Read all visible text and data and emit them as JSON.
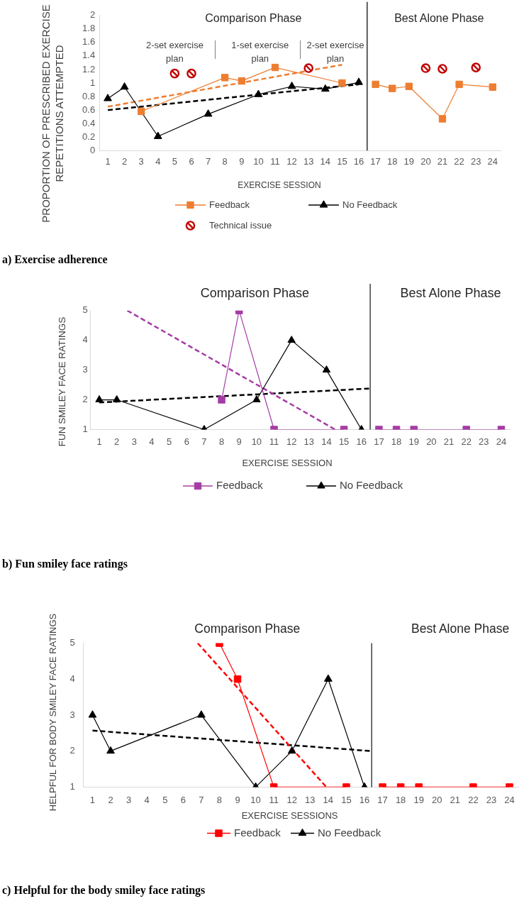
{
  "chart_data": [
    {
      "type": "line",
      "title": "a) Exercise adherence",
      "xlabel": "EXERCISE SESSION",
      "ylabel": "PROPORTION OF PRESCRIBED EXERCISE REPETITIONS ATTEMPTED",
      "xlim": [
        0.5,
        24.5
      ],
      "xticks": [
        1,
        2,
        3,
        4,
        5,
        6,
        7,
        8,
        9,
        10,
        11,
        12,
        13,
        14,
        15,
        16,
        17,
        18,
        19,
        20,
        21,
        22,
        23,
        24
      ],
      "ylim": [
        0,
        2
      ],
      "yticks": [
        0,
        0.2,
        0.4,
        0.6,
        0.8,
        1,
        1.2,
        1.4,
        1.6,
        1.8,
        2
      ],
      "legend": "bottom",
      "series": [
        {
          "name": "Feedback",
          "color": "#ed7d31",
          "marker": "square",
          "x": [
            3,
            8,
            9,
            11,
            15,
            16,
            17,
            18,
            19,
            21,
            22,
            24
          ],
          "values": [
            0.58,
            1.08,
            1.03,
            1.23,
            1.0,
            null,
            0.98,
            0.92,
            0.95,
            0.47,
            0.98,
            0.94
          ]
        },
        {
          "name": "No Feedback",
          "color": "#000000",
          "marker": "triangle",
          "x": [
            1,
            2,
            4,
            7,
            10,
            12,
            14,
            16
          ],
          "values": [
            0.77,
            0.94,
            0.21,
            0.54,
            0.83,
            0.95,
            0.91,
            1.01
          ]
        },
        {
          "name": "Technical issue",
          "type": "scatter",
          "color": "#c00000",
          "marker": "circle",
          "x": [
            5,
            6,
            13,
            20,
            21,
            23
          ],
          "values": [
            1.14,
            1.14,
            1.22,
            1.22,
            1.21,
            1.23
          ]
        },
        {
          "color": "#ed7d31",
          "line_style": "dashed",
          "marker": "none",
          "x": [
            1,
            15
          ],
          "values": [
            0.65,
            1.27
          ]
        },
        {
          "color": "#000000",
          "line_style": "dashed",
          "marker": "none",
          "x": [
            1,
            16
          ],
          "values": [
            0.6,
            0.98
          ]
        }
      ],
      "ref_lines": [
        {
          "axis": "x",
          "value": 16.5,
          "color": "#595959"
        }
      ],
      "annotations": [
        "Comparison Phase",
        "Best Alone Phase",
        "2-set exercise plan",
        "1-set exercise plan",
        "2-set exercise plan"
      ]
    },
    {
      "type": "line",
      "title": "b) Fun smiley face ratings",
      "xlabel": "EXERCISE SESSION",
      "ylabel": "FUN SMILEY FACE RATINGS",
      "xlim": [
        0.5,
        24.5
      ],
      "xticks": [
        1,
        2,
        3,
        4,
        5,
        6,
        7,
        8,
        9,
        10,
        11,
        12,
        13,
        14,
        15,
        16,
        17,
        18,
        19,
        20,
        21,
        22,
        23,
        24
      ],
      "ylim": [
        1,
        5
      ],
      "yticks": [
        1,
        2,
        3,
        4,
        5
      ],
      "legend": "bottom",
      "series": [
        {
          "name": "Feedback",
          "color": "#a53ca5",
          "marker": "square",
          "x": [
            8,
            9,
            11,
            15,
            16,
            17,
            18,
            19,
            22,
            24
          ],
          "values": [
            2,
            5,
            1,
            1,
            null,
            1,
            1,
            1,
            1,
            1
          ]
        },
        {
          "name": "No Feedback",
          "color": "#000000",
          "marker": "triangle",
          "x": [
            1,
            2,
            7,
            10,
            12,
            14,
            16
          ],
          "values": [
            2,
            2,
            1,
            2,
            4,
            3,
            1
          ]
        },
        {
          "color": "#a53ca5",
          "line_style": "dashed",
          "marker": "none",
          "x": [
            2.6,
            14.5
          ],
          "values": [
            5,
            1
          ]
        },
        {
          "color": "#000000",
          "line_style": "dashed",
          "marker": "none",
          "x": [
            1,
            16.5
          ],
          "values": [
            1.91,
            2.38
          ]
        }
      ],
      "ref_lines": [
        {
          "axis": "x",
          "value": 16.5,
          "color": "#404040"
        }
      ],
      "annotations": [
        "Comparison Phase",
        "Best Alone Phase"
      ]
    },
    {
      "type": "line",
      "title": "c) Helpful for the body smiley face ratings",
      "xlabel": "EXERCISE SESSIONS",
      "ylabel": "HELPFUL FOR BODY SMILEY FACE RATINGS",
      "xlim": [
        0.5,
        24.5
      ],
      "xticks": [
        1,
        2,
        3,
        4,
        5,
        6,
        7,
        8,
        9,
        10,
        11,
        12,
        13,
        14,
        15,
        16,
        17,
        18,
        19,
        20,
        21,
        22,
        23,
        24
      ],
      "ylim": [
        1,
        5
      ],
      "yticks": [
        1,
        2,
        3,
        4,
        5
      ],
      "legend": "bottom",
      "series": [
        {
          "name": "Feedback",
          "color": "#ff0000",
          "marker": "square",
          "x": [
            8,
            9,
            11,
            15,
            16,
            17,
            18,
            19,
            22,
            24
          ],
          "values": [
            5,
            4,
            1,
            1,
            null,
            1,
            1,
            1,
            1,
            1
          ]
        },
        {
          "name": "No Feedback",
          "color": "#000000",
          "marker": "triangle",
          "x": [
            1,
            2,
            7,
            10,
            12,
            14,
            16
          ],
          "values": [
            3,
            2,
            3,
            1,
            2,
            4,
            1
          ]
        },
        {
          "color": "#ff0000",
          "line_style": "dashed",
          "marker": "none",
          "x": [
            6.8,
            13.9
          ],
          "values": [
            5,
            1
          ]
        },
        {
          "color": "#000000",
          "line_style": "dashed",
          "marker": "none",
          "x": [
            1,
            16.4
          ],
          "values": [
            2.57,
            2.0
          ]
        }
      ],
      "ref_lines": [
        {
          "axis": "x",
          "value": 16.4,
          "color": "#404040"
        }
      ],
      "annotations": [
        "Comparison Phase",
        "Best Alone Phase"
      ]
    }
  ]
}
